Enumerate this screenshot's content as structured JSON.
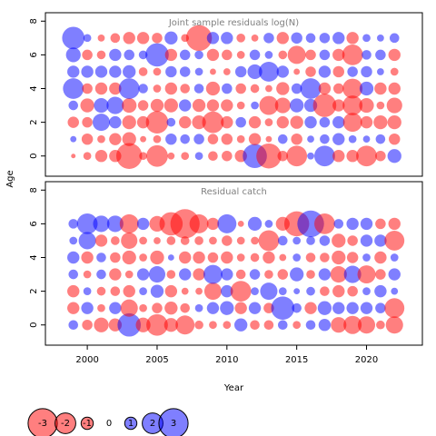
{
  "chart_data": {
    "type": "scatter",
    "xlabel": "Year",
    "ylabel": "Age",
    "xlim": [
      1997,
      2024
    ],
    "ylim": [
      -1.2,
      8.5
    ],
    "xticks": [
      2000,
      2005,
      2010,
      2015,
      2020
    ],
    "yticks": [
      0,
      2,
      4,
      6,
      8
    ],
    "years": [
      1999,
      2000,
      2001,
      2002,
      2003,
      2004,
      2005,
      2006,
      2007,
      2008,
      2009,
      2010,
      2011,
      2012,
      2013,
      2014,
      2015,
      2016,
      2017,
      2018,
      2019,
      2020,
      2021,
      2022
    ],
    "ages": [
      0,
      1,
      2,
      3,
      4,
      5,
      6,
      7
    ],
    "positive_color": "#0000ff",
    "negative_color": "#ff0000",
    "panels": [
      {
        "title": "Joint sample residuals log(N)",
        "ages": [
          0,
          1,
          2,
          3,
          4,
          5,
          6,
          7
        ],
        "residuals": [
          [
            -0.1,
            -0.5,
            -1.0,
            -1.0,
            -2.6,
            -0.5,
            -2.1,
            -0.4,
            -0.5,
            0.5,
            -0.7,
            -0.8,
            -1.0,
            2.4,
            -2.5,
            -0.8,
            -2.0,
            0.4,
            2.0,
            -1.0,
            -1.0,
            -2.0,
            -0.8,
            1.2
          ],
          [
            0.3,
            -0.9,
            -0.5,
            -1.0,
            -1.2,
            -0.3,
            -0.5,
            0.9,
            0.7,
            0.8,
            -0.8,
            -0.9,
            -0.5,
            -1.0,
            -0.3,
            0.7,
            -0.9,
            0.4,
            0.7,
            1.0,
            0.5,
            0.4,
            0.7,
            -0.9
          ],
          [
            -0.9,
            -0.8,
            1.6,
            1.0,
            -1.2,
            -1.0,
            -2.2,
            0.6,
            -1.0,
            -1.2,
            -2.1,
            -1.0,
            0.8,
            -1.0,
            -0.5,
            -1.0,
            -1.1,
            1.0,
            0.8,
            1.0,
            -1.8,
            -1.0,
            -1.2,
            -1.2
          ],
          [
            0.7,
            -1.2,
            1.3,
            1.6,
            -1.3,
            -0.8,
            -1.1,
            -1.2,
            1.0,
            -1.1,
            -1.0,
            -1.0,
            -0.5,
            0.5,
            -1.8,
            -1.4,
            1.2,
            1.1,
            -2.3,
            -1.0,
            -1.9,
            -1.3,
            -0.5,
            -1.4
          ],
          [
            2.0,
            -0.8,
            -1.0,
            -1.0,
            2.0,
            0.7,
            -0.5,
            -1.0,
            -0.7,
            0.7,
            -1.2,
            0.8,
            -0.8,
            -0.6,
            -0.4,
            -1.1,
            0.8,
            2.0,
            -1.0,
            -0.8,
            -1.9,
            1.2,
            -1.0,
            -1.0
          ],
          [
            1.0,
            1.0,
            1.0,
            1.0,
            1.1,
            -0.6,
            -0.5,
            0.9,
            0.8,
            0.5,
            -0.3,
            -0.4,
            0.9,
            1.3,
            1.9,
            1.0,
            -0.3,
            -0.8,
            1.0,
            -0.9,
            0.8,
            0.9,
            0.4,
            -0.5
          ],
          [
            1.3,
            -0.8,
            -0.6,
            1.0,
            0.8,
            0.6,
            2.3,
            -1.0,
            0.8,
            0.6,
            -1.0,
            -0.8,
            -0.5,
            0.8,
            0.5,
            -0.6,
            -1.7,
            -0.8,
            0.8,
            -1.0,
            -2.0,
            0.7,
            0.8,
            -1.0
          ],
          [
            2.2,
            0.5,
            -0.4,
            -0.7,
            -1.0,
            -1.0,
            -0.8,
            1.1,
            -0.5,
            -2.6,
            1.0,
            1.0,
            -0.6,
            -0.4,
            0.8,
            -1.0,
            0.9,
            0.7,
            0.8,
            1.0,
            -1.0,
            0.5,
            0.4,
            0.7
          ]
        ]
      },
      {
        "title": "Residual catch",
        "ages": [
          0,
          1,
          2,
          3,
          4,
          5,
          6
        ],
        "residuals": [
          [
            0.7,
            -0.8,
            -1.3,
            -1.1,
            2.3,
            -1.3,
            -2.1,
            -1.2,
            -1.8,
            -0.6,
            -0.5,
            -0.5,
            1.1,
            -0.7,
            -0.7,
            0.7,
            -0.5,
            0.7,
            1.0,
            -1.4,
            -1.7,
            -1.6,
            -0.6,
            -1.6
          ],
          [
            -1.0,
            1.0,
            -0.5,
            1.0,
            -1.6,
            -0.5,
            -0.8,
            -1.1,
            -0.7,
            0.5,
            1.0,
            1.2,
            -1.0,
            1.0,
            -0.8,
            2.3,
            0.7,
            -1.0,
            1.2,
            1.0,
            1.0,
            1.0,
            0.8,
            -1.9
          ],
          [
            -1.0,
            0.5,
            -0.6,
            -0.7,
            -1.0,
            0.5,
            1.1,
            -1.0,
            -0.4,
            -0.4,
            -1.6,
            1.0,
            -2.0,
            0.5,
            1.6,
            0.5,
            0.3,
            0.6,
            -0.7,
            -1.0,
            -0.8,
            0.5,
            1.0,
            0.4
          ],
          [
            0.7,
            -0.5,
            0.7,
            -1.0,
            -0.5,
            1.0,
            1.5,
            -0.6,
            1.0,
            -1.0,
            1.8,
            1.0,
            -0.7,
            0.8,
            -0.6,
            -0.8,
            1.2,
            -0.6,
            1.0,
            -1.5,
            1.6,
            -1.7,
            -0.8,
            1.0
          ],
          [
            1.0,
            -1.0,
            0.7,
            -0.8,
            -1.2,
            -0.5,
            -1.2,
            0.3,
            -1.0,
            -1.0,
            -0.8,
            -1.0,
            -0.5,
            -0.6,
            -1.0,
            -0.4,
            0.5,
            -0.7,
            -0.7,
            -1.2,
            -0.9,
            0.5,
            -1.0,
            0.5
          ],
          [
            0.5,
            1.6,
            -1.0,
            -0.6,
            -1.5,
            -0.5,
            -0.4,
            -0.6,
            -0.6,
            -0.6,
            -0.5,
            -0.8,
            -0.5,
            -0.5,
            -2.0,
            0.7,
            0.5,
            0.6,
            0.8,
            -1.2,
            -0.8,
            1.0,
            1.0,
            -1.9
          ],
          [
            0.7,
            2.0,
            1.5,
            1.5,
            -1.8,
            1.0,
            -1.4,
            -2.3,
            -3.0,
            -1.8,
            -1.0,
            1.8,
            -0.3,
            1.2,
            0.5,
            -1.2,
            -2.5,
            2.7,
            -2.0,
            0.7,
            1.0,
            1.0,
            -0.8,
            -1.0
          ]
        ]
      }
    ],
    "legend": {
      "placement": "bottom-left",
      "entries": [
        {
          "value": -3,
          "label": "-3"
        },
        {
          "value": -2,
          "label": "-2"
        },
        {
          "value": -1,
          "label": "-1"
        },
        {
          "value": 0,
          "label": "0"
        },
        {
          "value": 1,
          "label": "1"
        },
        {
          "value": 2,
          "label": "2"
        },
        {
          "value": 3,
          "label": "3"
        }
      ]
    }
  }
}
